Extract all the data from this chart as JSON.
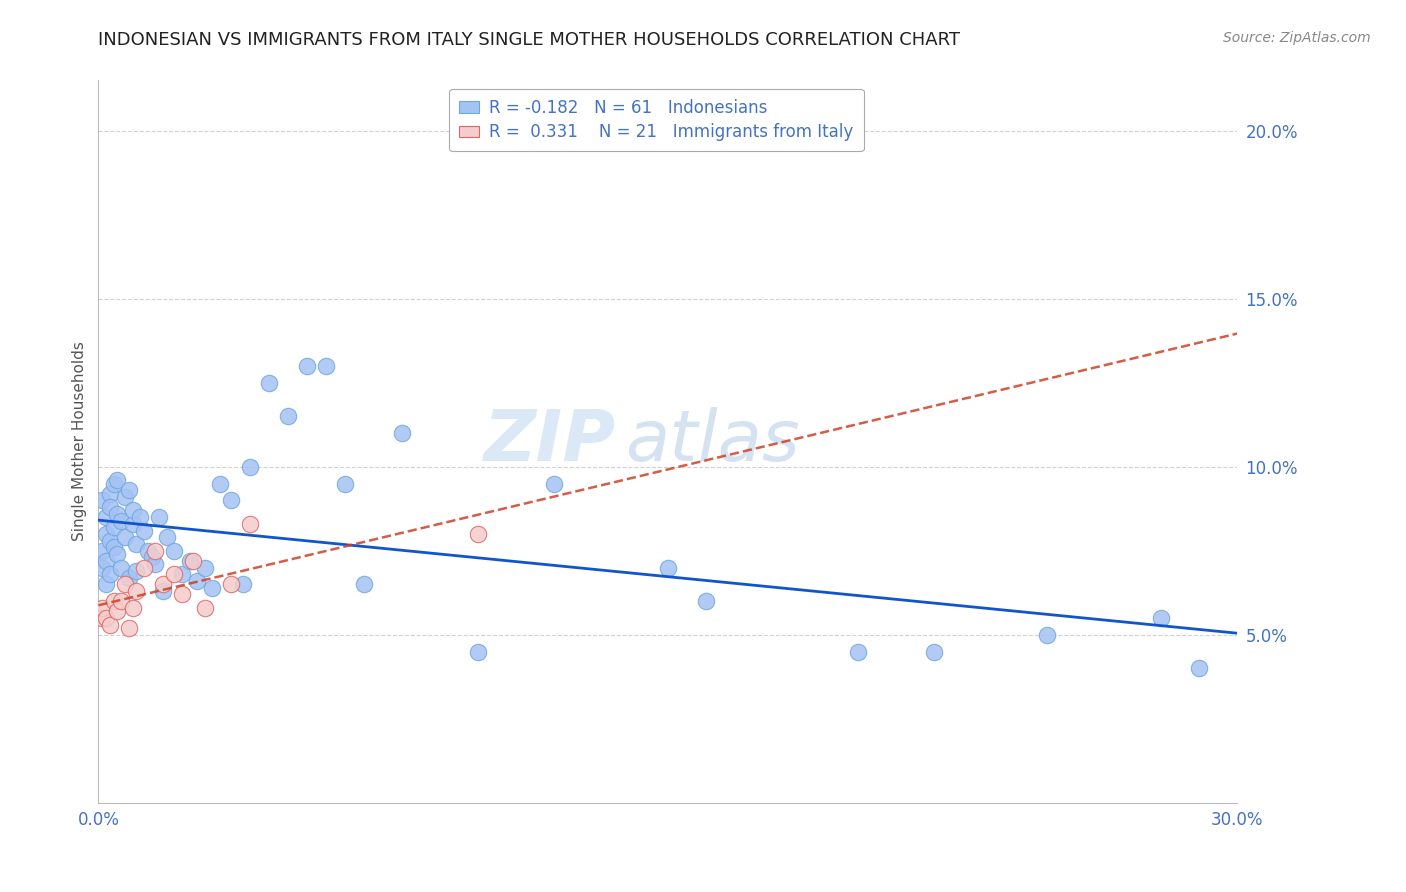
{
  "title": "INDONESIAN VS IMMIGRANTS FROM ITALY SINGLE MOTHER HOUSEHOLDS CORRELATION CHART",
  "source": "Source: ZipAtlas.com",
  "ylabel": "Single Mother Households",
  "xlim": [
    0.0,
    0.3
  ],
  "ylim": [
    0.0,
    0.215
  ],
  "xticks": [
    0.0,
    0.05,
    0.1,
    0.15,
    0.2,
    0.25,
    0.3
  ],
  "yticks": [
    0.05,
    0.1,
    0.15,
    0.2
  ],
  "ytick_labels": [
    "5.0%",
    "10.0%",
    "15.0%",
    "20.0%"
  ],
  "xtick_labels": [
    "0.0%",
    "",
    "",
    "",
    "",
    "",
    "30.0%"
  ],
  "axis_tick_color": "#4472c4",
  "grid_color": "#cccccc",
  "background_color": "#ffffff",
  "watermark_zip": "ZIP",
  "watermark_atlas": "atlas",
  "indonesian_x": [
    0.001,
    0.001,
    0.001,
    0.002,
    0.002,
    0.002,
    0.002,
    0.003,
    0.003,
    0.003,
    0.003,
    0.004,
    0.004,
    0.004,
    0.005,
    0.005,
    0.005,
    0.006,
    0.006,
    0.007,
    0.007,
    0.008,
    0.008,
    0.009,
    0.009,
    0.01,
    0.01,
    0.011,
    0.012,
    0.013,
    0.014,
    0.015,
    0.016,
    0.017,
    0.018,
    0.02,
    0.022,
    0.024,
    0.026,
    0.028,
    0.03,
    0.032,
    0.035,
    0.038,
    0.04,
    0.045,
    0.05,
    0.055,
    0.06,
    0.065,
    0.07,
    0.08,
    0.1,
    0.12,
    0.15,
    0.16,
    0.2,
    0.22,
    0.25,
    0.28,
    0.29
  ],
  "indonesian_y": [
    0.075,
    0.09,
    0.07,
    0.085,
    0.08,
    0.072,
    0.065,
    0.092,
    0.088,
    0.078,
    0.068,
    0.082,
    0.076,
    0.095,
    0.086,
    0.074,
    0.096,
    0.084,
    0.07,
    0.091,
    0.079,
    0.093,
    0.067,
    0.083,
    0.087,
    0.077,
    0.069,
    0.085,
    0.081,
    0.075,
    0.073,
    0.071,
    0.085,
    0.063,
    0.079,
    0.075,
    0.068,
    0.072,
    0.066,
    0.07,
    0.064,
    0.095,
    0.09,
    0.065,
    0.1,
    0.125,
    0.115,
    0.13,
    0.13,
    0.095,
    0.065,
    0.11,
    0.045,
    0.095,
    0.07,
    0.06,
    0.045,
    0.045,
    0.05,
    0.055,
    0.04
  ],
  "italy_x": [
    0.001,
    0.001,
    0.002,
    0.003,
    0.004,
    0.005,
    0.006,
    0.007,
    0.008,
    0.009,
    0.01,
    0.012,
    0.015,
    0.017,
    0.02,
    0.022,
    0.025,
    0.028,
    0.035,
    0.04,
    0.1
  ],
  "italy_y": [
    0.055,
    0.058,
    0.055,
    0.053,
    0.06,
    0.057,
    0.06,
    0.065,
    0.052,
    0.058,
    0.063,
    0.07,
    0.075,
    0.065,
    0.068,
    0.062,
    0.072,
    0.058,
    0.065,
    0.083,
    0.08
  ],
  "indonesian_color": "#a4c2f4",
  "italy_color": "#f4cccc",
  "indonesian_edge_color": "#6fa8dc",
  "italy_edge_color": "#e06666",
  "trendline_indonesian_color": "#1155cc",
  "trendline_italy_color": "#cc4125",
  "legend_r_indonesian": "-0.182",
  "legend_n_indonesian": "61",
  "legend_r_italy": "0.331",
  "legend_n_italy": "21",
  "title_fontsize": 13,
  "source_fontsize": 10,
  "axis_label_fontsize": 11,
  "tick_fontsize": 12,
  "legend_fontsize": 12,
  "watermark_fontsize_zip": 52,
  "watermark_fontsize_atlas": 52
}
